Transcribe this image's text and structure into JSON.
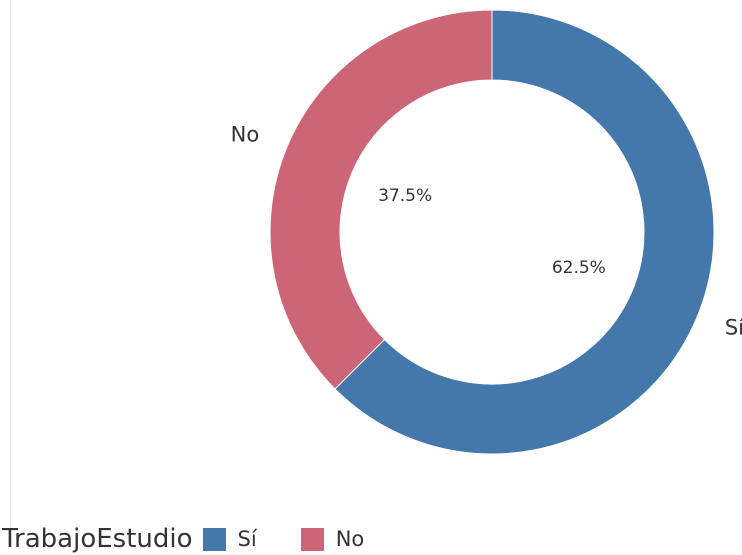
{
  "chart_data": {
    "type": "pie",
    "title": "",
    "categories": [
      "Sí",
      "No"
    ],
    "values": [
      62.5,
      37.5
    ],
    "percent_labels": [
      "62.5%",
      "37.5%"
    ],
    "colors": [
      "#4477aa",
      "#cc6677"
    ],
    "donut": true,
    "legend": {
      "title": "TrabajoEstudio",
      "placement": "bottom-left",
      "items": [
        "Sí",
        "No"
      ]
    }
  }
}
